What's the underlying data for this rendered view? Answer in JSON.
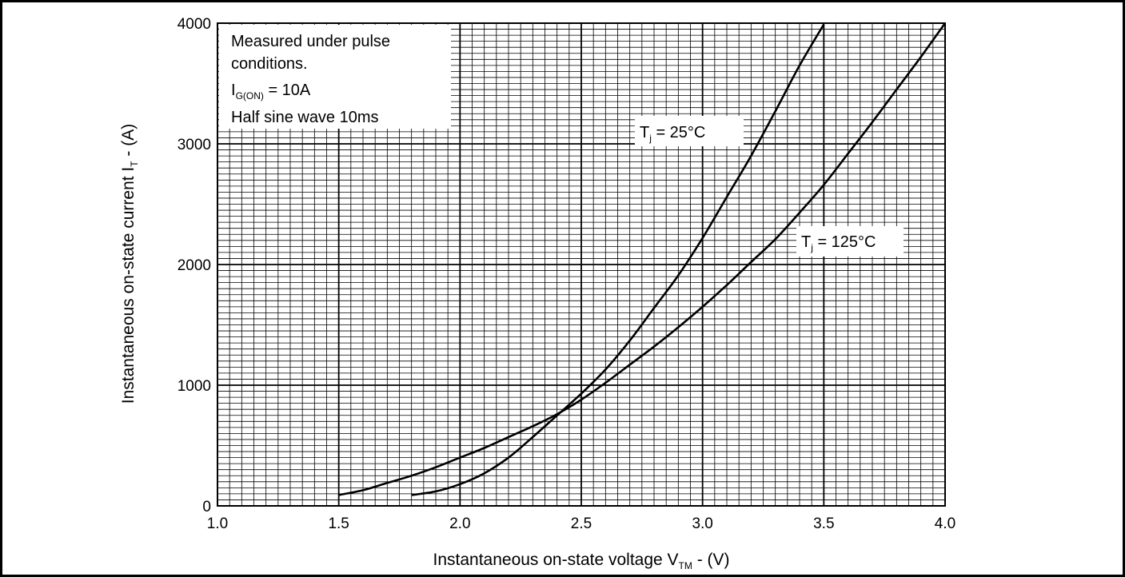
{
  "chart_data": {
    "type": "line",
    "xlabel": {
      "main": "Instantaneous on-state voltage V",
      "sub": "TM",
      "unit": " - (V)"
    },
    "ylabel": {
      "main": "Instantaneous on-state current I",
      "sub": "T",
      "unit": " - (A)"
    },
    "xlim": [
      1.0,
      4.0
    ],
    "ylim": [
      0,
      4000
    ],
    "x_ticks": [
      "1.0",
      "1.5",
      "2.0",
      "2.5",
      "3.0",
      "3.5",
      "4.0"
    ],
    "y_ticks": [
      "0",
      "1000",
      "2000",
      "3000",
      "4000"
    ],
    "grid": {
      "major": true,
      "minor": true
    },
    "annotation": {
      "line1": "Measured under pulse",
      "line2": "conditions.",
      "line3_main": "I",
      "line3_sub": "G(ON)",
      "line3_rest": " = 10A",
      "line4": "Half sine wave 10ms"
    },
    "series": [
      {
        "name_main": "T",
        "name_sub": "j",
        "name_rest": " = 25°C",
        "x": [
          1.8,
          1.9,
          2.0,
          2.1,
          2.2,
          2.3,
          2.4,
          2.5,
          2.6,
          2.7,
          2.8,
          2.9,
          3.0,
          3.1,
          3.2,
          3.3,
          3.4,
          3.5
        ],
        "y": [
          90,
          120,
          180,
          270,
          400,
          570,
          750,
          930,
          1130,
          1370,
          1640,
          1910,
          2220,
          2560,
          2900,
          3270,
          3650,
          3990
        ]
      },
      {
        "name_main": "T",
        "name_sub": "j",
        "name_rest": " = 125°C",
        "x": [
          1.5,
          1.6,
          1.7,
          1.8,
          1.9,
          2.0,
          2.1,
          2.2,
          2.3,
          2.4,
          2.5,
          2.6,
          2.7,
          2.8,
          2.9,
          3.0,
          3.1,
          3.2,
          3.3,
          3.4,
          3.5,
          3.6,
          3.7,
          3.8,
          3.9,
          4.0
        ],
        "y": [
          90,
          130,
          190,
          250,
          320,
          400,
          480,
          570,
          660,
          760,
          880,
          1020,
          1170,
          1320,
          1480,
          1650,
          1830,
          2020,
          2210,
          2430,
          2660,
          2920,
          3180,
          3450,
          3720,
          4000
        ]
      }
    ]
  }
}
